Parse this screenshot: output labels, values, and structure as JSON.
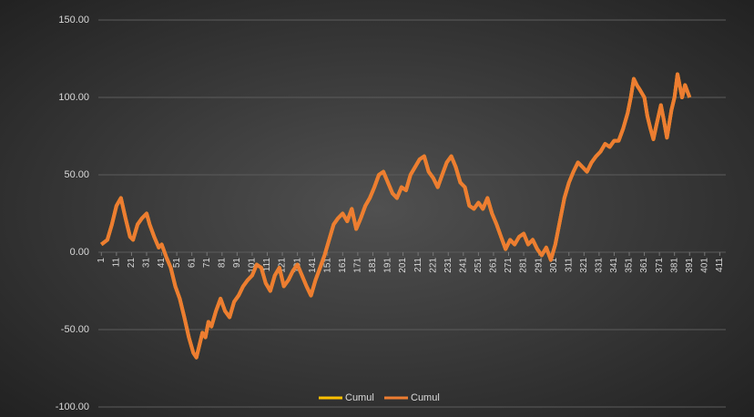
{
  "chart_data": {
    "type": "line",
    "x": [
      1,
      5,
      8,
      11,
      14,
      17,
      20,
      22,
      25,
      28,
      31,
      33,
      36,
      39,
      41,
      44,
      47,
      50,
      53,
      56,
      59,
      62,
      64,
      66,
      68,
      70,
      72,
      74,
      77,
      80,
      83,
      86,
      89,
      92,
      95,
      98,
      101,
      104,
      107,
      110,
      113,
      116,
      119,
      122,
      125,
      128,
      131,
      134,
      137,
      140,
      143,
      146,
      149,
      152,
      155,
      158,
      161,
      164,
      167,
      170,
      173,
      176,
      179,
      182,
      185,
      188,
      191,
      194,
      197,
      200,
      203,
      206,
      209,
      212,
      215,
      218,
      221,
      224,
      227,
      230,
      233,
      236,
      239,
      242,
      245,
      248,
      251,
      254,
      257,
      260,
      263,
      266,
      269,
      272,
      275,
      278,
      281,
      284,
      287,
      290,
      293,
      296,
      299,
      302,
      305,
      308,
      311,
      314,
      317,
      320,
      323,
      326,
      329,
      332,
      335,
      338,
      341,
      344,
      347,
      350,
      352,
      354,
      356,
      358,
      361,
      363,
      365,
      367,
      369,
      372,
      374,
      376,
      379,
      381,
      383,
      386,
      388,
      391
    ],
    "series": [
      {
        "name": "Cumul",
        "color": "#ffc000",
        "values": [
          5,
          8,
          18,
          30,
          35,
          22,
          10,
          8,
          18,
          22,
          25,
          18,
          10,
          3,
          5,
          -3,
          -10,
          -22,
          -30,
          -42,
          -55,
          -65,
          -68,
          -60,
          -52,
          -55,
          -45,
          -48,
          -38,
          -30,
          -38,
          -42,
          -32,
          -28,
          -22,
          -18,
          -15,
          -8,
          -10,
          -20,
          -25,
          -15,
          -10,
          -22,
          -18,
          -12,
          -8,
          -15,
          -22,
          -28,
          -18,
          -10,
          -2,
          8,
          18,
          22,
          25,
          20,
          28,
          15,
          22,
          30,
          35,
          42,
          50,
          52,
          45,
          38,
          35,
          42,
          40,
          50,
          55,
          60,
          62,
          52,
          48,
          42,
          50,
          58,
          62,
          55,
          45,
          42,
          30,
          28,
          32,
          28,
          35,
          25,
          18,
          10,
          2,
          8,
          5,
          10,
          12,
          5,
          8,
          2,
          -2,
          3,
          -5,
          5,
          20,
          35,
          45,
          52,
          58,
          55,
          52,
          58,
          62,
          65,
          70,
          68,
          72,
          72,
          80,
          90,
          100,
          112,
          108,
          105,
          100,
          88,
          80,
          73,
          82,
          95,
          85,
          74,
          92,
          100,
          115,
          100,
          108,
          100
        ]
      },
      {
        "name": "Cumul",
        "color": "#ed7d31",
        "values": [
          5,
          8,
          18,
          30,
          35,
          22,
          10,
          8,
          18,
          22,
          25,
          18,
          10,
          3,
          5,
          -3,
          -10,
          -22,
          -30,
          -42,
          -55,
          -65,
          -68,
          -60,
          -52,
          -55,
          -45,
          -48,
          -38,
          -30,
          -38,
          -42,
          -32,
          -28,
          -22,
          -18,
          -15,
          -8,
          -10,
          -20,
          -25,
          -15,
          -10,
          -22,
          -18,
          -12,
          -8,
          -15,
          -22,
          -28,
          -18,
          -10,
          -2,
          8,
          18,
          22,
          25,
          20,
          28,
          15,
          22,
          30,
          35,
          42,
          50,
          52,
          45,
          38,
          35,
          42,
          40,
          50,
          55,
          60,
          62,
          52,
          48,
          42,
          50,
          58,
          62,
          55,
          45,
          42,
          30,
          28,
          32,
          28,
          35,
          25,
          18,
          10,
          2,
          8,
          5,
          10,
          12,
          5,
          8,
          2,
          -2,
          3,
          -5,
          5,
          20,
          35,
          45,
          52,
          58,
          55,
          52,
          58,
          62,
          65,
          70,
          68,
          72,
          72,
          80,
          90,
          100,
          112,
          108,
          105,
          100,
          88,
          80,
          73,
          82,
          95,
          85,
          74,
          92,
          100,
          115,
          100,
          108,
          100
        ]
      }
    ],
    "xlim": [
      -1,
      415
    ],
    "xticks": [
      1,
      11,
      21,
      31,
      41,
      51,
      61,
      71,
      81,
      91,
      101,
      111,
      121,
      131,
      141,
      151,
      161,
      171,
      181,
      191,
      201,
      211,
      221,
      231,
      241,
      251,
      261,
      271,
      281,
      291,
      301,
      311,
      321,
      331,
      341,
      351,
      361,
      371,
      381,
      391,
      401,
      411
    ],
    "ylim": [
      -100,
      150
    ],
    "yticks": [
      {
        "value": -100,
        "label": "-100.00"
      },
      {
        "value": -50,
        "label": "-50.00"
      },
      {
        "value": 0,
        "label": "0.00"
      },
      {
        "value": 50,
        "label": "50.00"
      },
      {
        "value": 100,
        "label": "100.00"
      },
      {
        "value": 150,
        "label": "150.00"
      }
    ],
    "grid": true
  }
}
